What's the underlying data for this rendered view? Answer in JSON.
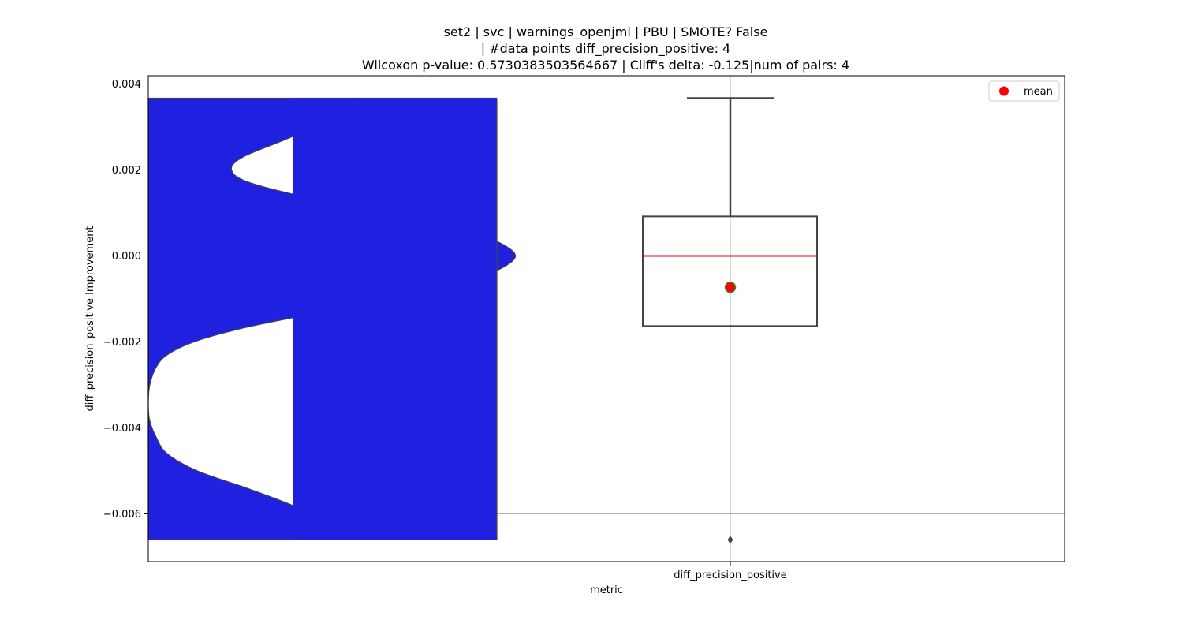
{
  "chart_data": {
    "type": "violin+box",
    "title_lines": [
      "set2 | svc | warnings_openjml | PBU | SMOTE? False",
      "| #data points diff_precision_positive: 4",
      "Wilcoxon p-value: 0.5730383503564667 | Cliff's delta: -0.125|num of pairs: 4"
    ],
    "xlabel": "metric",
    "ylabel": "diff_precision_positive Improvement",
    "categories": [
      "diff_precision_positive"
    ],
    "ylim": [
      -0.0071,
      0.0042
    ],
    "yticks": [
      0.004,
      0.002,
      0.0,
      -0.002,
      -0.004,
      -0.006
    ],
    "ytick_labels": [
      "0.004",
      "0.002",
      "0.000",
      "−0.002",
      "−0.004",
      "−0.006"
    ],
    "grid": true,
    "legend": {
      "position": "top-right",
      "entries": [
        {
          "label": "mean",
          "color": "#ff0000",
          "marker": "circle"
        }
      ]
    },
    "violin": {
      "color": "#2020e0",
      "ymin": -0.0066,
      "ymax": 0.00367,
      "density_profile": [
        [
          0.00367,
          0.54
        ],
        [
          0.0032,
          0.49
        ],
        [
          0.0027,
          0.36
        ],
        [
          0.0023,
          0.25
        ],
        [
          0.002,
          0.22
        ],
        [
          0.0017,
          0.27
        ],
        [
          0.0013,
          0.45
        ],
        [
          0.001,
          0.63
        ],
        [
          0.0007,
          0.78
        ],
        [
          0.0005,
          0.86
        ],
        [
          0.0003,
          0.93
        ],
        [
          0.0,
          0.97
        ],
        [
          -0.0003,
          0.93
        ],
        [
          -0.0005,
          0.86
        ],
        [
          -0.0008,
          0.72
        ],
        [
          -0.0011,
          0.55
        ],
        [
          -0.0014,
          0.4
        ],
        [
          -0.0017,
          0.24
        ],
        [
          -0.002,
          0.12
        ],
        [
          -0.0023,
          0.05
        ],
        [
          -0.0026,
          0.02
        ],
        [
          -0.003,
          0.004
        ],
        [
          -0.0034,
          0.0
        ],
        [
          -0.0038,
          0.003
        ],
        [
          -0.0042,
          0.02
        ],
        [
          -0.0046,
          0.05
        ],
        [
          -0.005,
          0.13
        ],
        [
          -0.0054,
          0.26
        ],
        [
          -0.0058,
          0.38
        ],
        [
          -0.0062,
          0.47
        ],
        [
          -0.0066,
          0.54
        ]
      ]
    },
    "box": {
      "category": "diff_precision_positive",
      "whisker_low": -0.0066,
      "q1": -0.00163,
      "median": 0.0,
      "q3": 0.00092,
      "whisker_high": 0.00367,
      "mean": -0.00073,
      "outliers": [
        -0.0066
      ],
      "median_color": "#ff0000",
      "mean_color": "#ff0000",
      "mean_edge_color": "#2e8b2e"
    }
  }
}
